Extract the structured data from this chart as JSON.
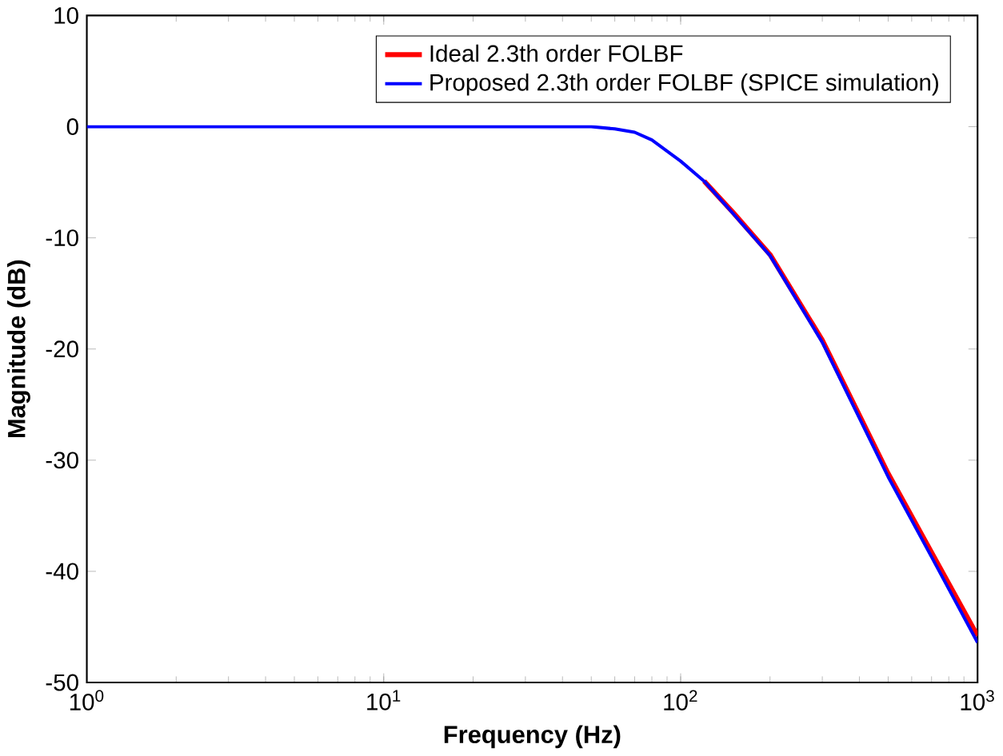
{
  "chart_data": {
    "type": "line",
    "xlabel": "Frequency (Hz)",
    "ylabel": "Magnitude (dB)",
    "log": "x",
    "xlim": [
      1,
      1000
    ],
    "ylim": [
      -50,
      10
    ],
    "xticks": [
      {
        "value": 1,
        "label": "10$^{0}$"
      },
      {
        "value": 10,
        "label": "10$^{1}$"
      },
      {
        "value": 100,
        "label": "10$^{2}$"
      },
      {
        "value": 1000,
        "label": "10$^{3}$"
      }
    ],
    "yticks": [
      -50,
      -40,
      -30,
      -20,
      -10,
      0,
      10
    ],
    "legend": "top right",
    "grid": false,
    "series": [
      {
        "name": "Ideal 2.3th order FOLBF",
        "color": "#ff0000",
        "x": [
          120,
          150,
          200,
          300,
          500,
          700,
          1000
        ],
        "values": [
          -4.9,
          -7.7,
          -11.5,
          -19.2,
          -31.2,
          -38.3,
          -45.8
        ]
      },
      {
        "name": "Proposed 2.3th order FOLBF (SPICE simulation)",
        "color": "#0000ff",
        "x": [
          1,
          10,
          50,
          60,
          70,
          80,
          90,
          100,
          120,
          150,
          200,
          300,
          500,
          700,
          1000
        ],
        "values": [
          0,
          0,
          0,
          -0.2,
          -0.5,
          -1.2,
          -2.2,
          -3.1,
          -4.9,
          -7.8,
          -11.6,
          -19.4,
          -31.5,
          -38.7,
          -46.4
        ]
      }
    ]
  }
}
